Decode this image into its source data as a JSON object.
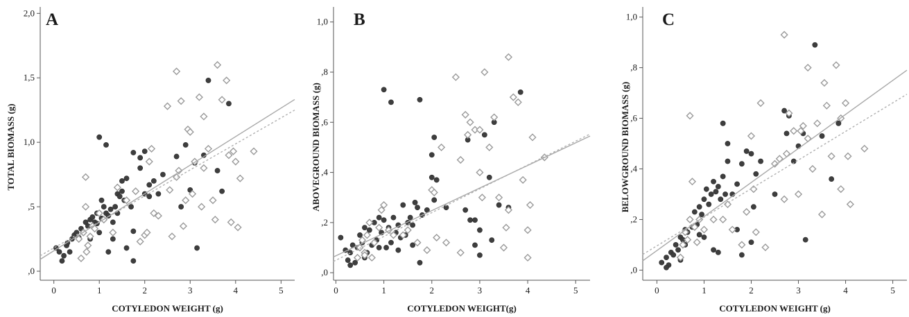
{
  "colors": {
    "filled_marker": "#3e3e3e",
    "filled_marker_edge": "#2a2a2a",
    "open_marker": "#9a9a9a",
    "solid_fit": "#a8a8a8",
    "dashed_fit": "#b0b0b0",
    "axis": "#555555"
  },
  "chart_data": [
    {
      "type": "scatter",
      "panel_label": "A",
      "title": "",
      "xlabel": "COTYLEDON WEIGHT (g)",
      "ylabel": "TOTAL BIOMASS (g)",
      "xlim": [
        -0.3,
        5.3
      ],
      "ylim": [
        -0.07,
        2.05
      ],
      "xticks": [
        0,
        1,
        2,
        3,
        4,
        5
      ],
      "xtick_labels": [
        "0",
        "1",
        "2",
        "3",
        "4",
        "5"
      ],
      "yticks": [
        0,
        0.5,
        1.0,
        1.5,
        2.0
      ],
      "ytick_labels": [
        ",0",
        ",5",
        "1,0",
        "1,5",
        "2,0"
      ],
      "grid": false,
      "legend": "none",
      "series": [
        {
          "marker": "filled-circle",
          "x": [
            0.05,
            0.12,
            0.18,
            0.22,
            0.28,
            0.3,
            0.35,
            0.4,
            0.45,
            0.5,
            0.55,
            0.6,
            0.65,
            0.7,
            0.75,
            0.8,
            0.85,
            0.9,
            0.95,
            1.0,
            1.05,
            1.1,
            1.15,
            1.2,
            1.25,
            1.3,
            1.35,
            1.4,
            1.45,
            1.5,
            1.55,
            1.6,
            1.7,
            1.75,
            1.8,
            1.9,
            2.0,
            2.1,
            2.2,
            1.0,
            1.15,
            1.5,
            1.75,
            1.9,
            2.0,
            2.4,
            2.7,
            2.9,
            3.0,
            3.1,
            3.3,
            3.4,
            3.6,
            3.7,
            3.85,
            2.8,
            3.15,
            0.95,
            1.2,
            1.3,
            1.6,
            1.75,
            2.1,
            2.3,
            0.8,
            1.05,
            1.4
          ],
          "y": [
            0.18,
            0.15,
            0.08,
            0.12,
            0.2,
            0.22,
            0.15,
            0.25,
            0.28,
            0.3,
            0.26,
            0.33,
            0.3,
            0.38,
            0.35,
            0.4,
            0.42,
            0.38,
            0.45,
            0.3,
            0.41,
            0.5,
            0.45,
            0.43,
            0.48,
            0.38,
            0.5,
            0.6,
            0.58,
            0.62,
            0.55,
            0.72,
            0.5,
            0.31,
            0.62,
            0.88,
            0.93,
            0.67,
            0.7,
            1.04,
            0.98,
            0.7,
            0.92,
            0.8,
            0.6,
            0.75,
            0.89,
            0.98,
            0.63,
            0.84,
            0.9,
            1.48,
            0.78,
            0.62,
            1.3,
            0.5,
            0.18,
            0.37,
            0.15,
            0.25,
            0.18,
            0.08,
            0.58,
            0.6,
            0.25,
            0.55,
            0.45
          ]
        },
        {
          "marker": "open-diamond",
          "x": [
            0.55,
            0.6,
            0.65,
            0.7,
            0.72,
            0.75,
            0.8,
            0.85,
            0.9,
            1.0,
            1.1,
            1.3,
            1.6,
            1.8,
            1.9,
            2.0,
            2.05,
            2.1,
            2.15,
            2.2,
            2.3,
            2.5,
            2.55,
            2.6,
            2.7,
            2.75,
            2.8,
            2.85,
            2.9,
            2.95,
            3.0,
            3.05,
            3.1,
            3.2,
            3.25,
            3.3,
            3.4,
            3.5,
            3.55,
            3.6,
            3.7,
            3.8,
            3.85,
            3.9,
            3.95,
            4.0,
            4.05,
            4.1,
            4.4,
            0.7,
            1.4,
            2.7,
            3.3
          ],
          "y": [
            0.25,
            0.1,
            0.3,
            0.5,
            0.15,
            0.2,
            0.27,
            0.35,
            0.33,
            0.45,
            0.4,
            0.3,
            0.55,
            0.62,
            0.23,
            0.28,
            0.3,
            0.85,
            0.95,
            0.45,
            0.43,
            1.28,
            0.63,
            0.27,
            1.55,
            0.78,
            1.32,
            0.35,
            0.55,
            1.1,
            1.08,
            0.6,
            0.85,
            1.35,
            0.5,
            1.2,
            0.95,
            0.55,
            0.4,
            1.6,
            1.33,
            1.48,
            0.9,
            0.38,
            0.93,
            0.85,
            0.34,
            0.72,
            0.93,
            0.73,
            0.65,
            0.73,
            0.8
          ]
        }
      ],
      "fit_lines": [
        {
          "style": "solid",
          "x": [
            -0.3,
            5.3
          ],
          "y": [
            0.092,
            1.332
          ]
        },
        {
          "style": "dashed",
          "x": [
            -0.3,
            5.3
          ],
          "y": [
            0.12,
            1.25
          ]
        }
      ]
    },
    {
      "type": "scatter",
      "panel_label": "B",
      "title": "",
      "xlabel": "COTYLEDON WEIGHT(g)",
      "ylabel": "ABOVEGROUND BIOMASS (g)",
      "xlim": [
        -0.05,
        5.3
      ],
      "ylim": [
        -0.03,
        1.06
      ],
      "xticks": [
        0,
        1,
        2,
        3,
        4,
        5
      ],
      "xtick_labels": [
        "0",
        "1",
        "2",
        "3",
        "4",
        "5"
      ],
      "yticks": [
        0,
        0.2,
        0.4,
        0.6,
        0.8,
        1.0
      ],
      "ytick_labels": [
        ",0",
        ",2",
        ",4",
        ",6",
        ",8",
        "1,0"
      ],
      "grid": false,
      "legend": "none",
      "series": [
        {
          "marker": "filled-circle",
          "x": [
            0.1,
            0.2,
            0.25,
            0.3,
            0.35,
            0.4,
            0.45,
            0.5,
            0.55,
            0.6,
            0.65,
            0.7,
            0.75,
            0.8,
            0.85,
            0.9,
            0.95,
            1.0,
            1.05,
            1.1,
            1.15,
            1.2,
            1.25,
            1.3,
            1.35,
            1.4,
            1.45,
            1.5,
            1.55,
            1.6,
            1.65,
            1.7,
            1.75,
            1.8,
            1.9,
            2.0,
            2.05,
            2.1,
            2.3,
            2.7,
            2.75,
            2.8,
            2.9,
            3.0,
            3.1,
            3.2,
            3.3,
            3.4,
            3.6,
            3.85,
            1.0,
            1.15,
            1.75,
            2.0,
            2.05,
            0.3,
            0.6,
            0.9,
            1.3,
            1.6,
            2.1,
            2.9,
            3.0,
            3.25
          ],
          "y": [
            0.14,
            0.09,
            0.05,
            0.08,
            0.11,
            0.04,
            0.1,
            0.15,
            0.12,
            0.18,
            0.08,
            0.17,
            0.11,
            0.2,
            0.13,
            0.22,
            0.16,
            0.21,
            0.1,
            0.18,
            0.12,
            0.22,
            0.16,
            0.19,
            0.14,
            0.27,
            0.15,
            0.2,
            0.22,
            0.19,
            0.28,
            0.26,
            0.04,
            0.23,
            0.25,
            0.38,
            0.54,
            0.37,
            0.26,
            0.25,
            0.53,
            0.21,
            0.21,
            0.17,
            0.55,
            0.38,
            0.6,
            0.27,
            0.26,
            0.72,
            0.73,
            0.68,
            0.69,
            0.47,
            0.29,
            0.03,
            0.06,
            0.1,
            0.09,
            0.11,
            0.14,
            0.11,
            0.07,
            0.13
          ]
        },
        {
          "marker": "open-diamond",
          "x": [
            0.45,
            0.5,
            0.55,
            0.6,
            0.65,
            0.7,
            0.75,
            0.8,
            0.9,
            0.95,
            1.0,
            1.2,
            1.4,
            1.7,
            1.9,
            2.0,
            2.1,
            2.2,
            2.3,
            2.5,
            2.6,
            2.7,
            2.75,
            2.8,
            2.9,
            3.0,
            3.05,
            3.1,
            3.2,
            3.3,
            3.4,
            3.5,
            3.55,
            3.6,
            3.7,
            3.8,
            3.9,
            4.0,
            4.05,
            4.1,
            4.35,
            0.6,
            1.1,
            1.5,
            2.05,
            2.6,
            3.0,
            3.6,
            4.0
          ],
          "y": [
            0.06,
            0.1,
            0.13,
            0.08,
            0.15,
            0.2,
            0.06,
            0.12,
            0.18,
            0.25,
            0.27,
            0.15,
            0.15,
            0.12,
            0.09,
            0.33,
            0.14,
            0.5,
            0.12,
            0.78,
            0.08,
            0.63,
            0.55,
            0.6,
            0.57,
            0.57,
            0.3,
            0.8,
            0.5,
            0.62,
            0.3,
            0.1,
            0.18,
            0.86,
            0.7,
            0.68,
            0.37,
            0.06,
            0.27,
            0.54,
            0.46,
            0.07,
            0.17,
            0.17,
            0.32,
            0.45,
            0.4,
            0.25,
            0.17
          ]
        }
      ],
      "fit_lines": [
        {
          "style": "solid",
          "x": [
            -0.05,
            5.3
          ],
          "y": [
            0.063,
            0.545
          ]
        },
        {
          "style": "dashed",
          "x": [
            -0.05,
            5.3
          ],
          "y": [
            0.045,
            0.553
          ]
        }
      ]
    },
    {
      "type": "scatter",
      "panel_label": "C",
      "title": "",
      "xlabel": "COTYLEDON WEIGHT (g)",
      "ylabel": "BELOWGROUND BIOMASS (g)",
      "xlim": [
        -0.3,
        5.3
      ],
      "ylim": [
        -0.04,
        1.04
      ],
      "xticks": [
        0,
        1,
        2,
        3,
        4,
        5
      ],
      "xtick_labels": [
        "0",
        "1",
        "2",
        "3",
        "4",
        "5"
      ],
      "yticks": [
        0,
        0.2,
        0.4,
        0.6,
        0.8,
        1.0
      ],
      "ytick_labels": [
        ",0",
        ",2",
        ",4",
        ",6",
        ",8",
        "1,0"
      ],
      "grid": false,
      "legend": "none",
      "series": [
        {
          "marker": "filled-circle",
          "x": [
            0.1,
            0.2,
            0.25,
            0.3,
            0.35,
            0.4,
            0.45,
            0.5,
            0.55,
            0.6,
            0.65,
            0.7,
            0.75,
            0.8,
            0.85,
            0.9,
            0.95,
            1.0,
            1.05,
            1.1,
            1.15,
            1.2,
            1.25,
            1.3,
            1.35,
            1.4,
            1.45,
            1.5,
            1.6,
            1.7,
            1.8,
            1.9,
            2.0,
            2.1,
            2.2,
            2.7,
            2.75,
            2.8,
            2.9,
            3.0,
            3.1,
            3.2,
            3.35,
            3.5,
            3.7,
            3.85,
            1.4,
            1.5,
            1.8,
            2.0,
            2.05,
            0.2,
            0.6,
            0.9,
            1.2,
            1.7,
            2.5,
            3.15,
            0.5,
            1.0,
            1.3
          ],
          "y": [
            0.03,
            0.05,
            0.02,
            0.07,
            0.06,
            0.1,
            0.08,
            0.13,
            0.12,
            0.16,
            0.15,
            0.2,
            0.17,
            0.23,
            0.18,
            0.25,
            0.22,
            0.28,
            0.32,
            0.26,
            0.3,
            0.35,
            0.31,
            0.33,
            0.28,
            0.37,
            0.3,
            0.43,
            0.3,
            0.34,
            0.42,
            0.47,
            0.46,
            0.38,
            0.43,
            0.63,
            0.54,
            0.61,
            0.43,
            0.49,
            0.54,
            0.52,
            0.89,
            0.53,
            0.36,
            0.58,
            0.58,
            0.5,
            0.06,
            0.11,
            0.25,
            0.01,
            0.1,
            0.14,
            0.08,
            0.16,
            0.3,
            0.12,
            0.04,
            0.13,
            0.07
          ]
        },
        {
          "marker": "open-diamond",
          "x": [
            0.5,
            0.55,
            0.6,
            0.65,
            0.7,
            0.75,
            0.8,
            0.85,
            0.9,
            1.0,
            1.2,
            1.4,
            1.6,
            1.8,
            1.9,
            2.0,
            2.1,
            2.2,
            2.3,
            2.5,
            2.6,
            2.7,
            2.75,
            2.8,
            2.9,
            3.0,
            3.05,
            3.1,
            3.2,
            3.3,
            3.4,
            3.5,
            3.55,
            3.6,
            3.7,
            3.8,
            3.9,
            4.0,
            4.05,
            4.1,
            4.4,
            0.7,
            1.5,
            2.05,
            2.7,
            3.2,
            3.9
          ],
          "y": [
            0.05,
            0.1,
            0.15,
            0.12,
            0.2,
            0.35,
            0.17,
            0.11,
            0.2,
            0.16,
            0.2,
            0.2,
            0.16,
            0.1,
            0.23,
            0.53,
            0.15,
            0.66,
            0.09,
            0.42,
            0.44,
            0.93,
            0.46,
            0.62,
            0.55,
            0.3,
            0.55,
            0.57,
            0.8,
            0.4,
            0.58,
            0.22,
            0.74,
            0.65,
            0.45,
            0.81,
            0.6,
            0.66,
            0.45,
            0.26,
            0.48,
            0.61,
            0.26,
            0.32,
            0.28,
            0.52,
            0.32
          ]
        }
      ],
      "fit_lines": [
        {
          "style": "solid",
          "x": [
            -0.3,
            5.3
          ],
          "y": [
            0.037,
            0.79
          ]
        },
        {
          "style": "dashed",
          "x": [
            -0.3,
            5.3
          ],
          "y": [
            0.062,
            0.695
          ]
        }
      ]
    }
  ]
}
